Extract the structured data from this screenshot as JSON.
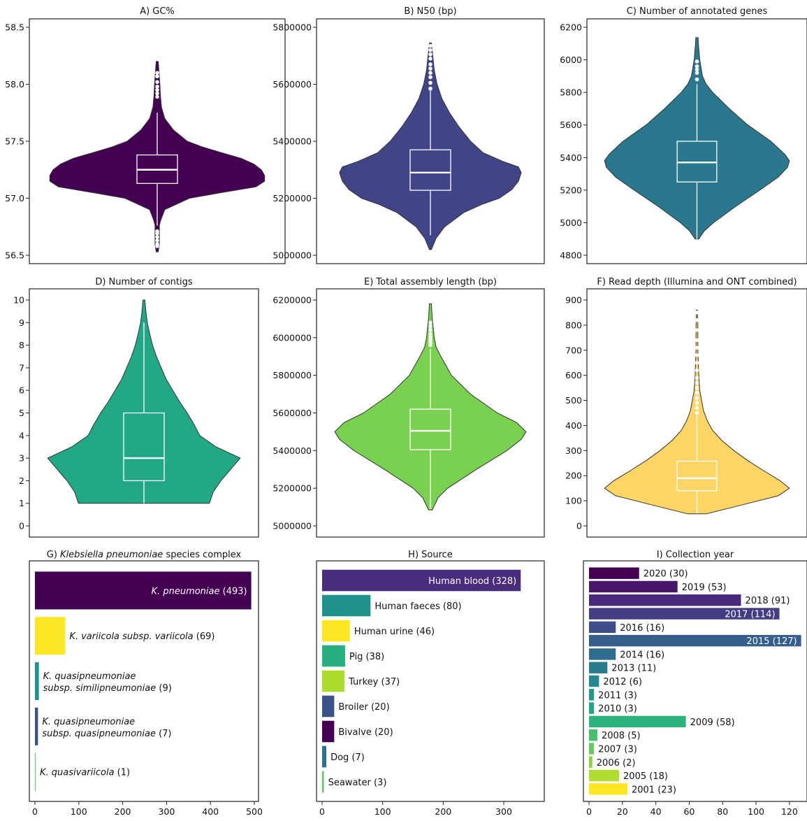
{
  "chart_data": [
    {
      "id": "A",
      "type": "violin",
      "title": "A)  GC%",
      "ylim": [
        56.5,
        58.5
      ],
      "yticks": [
        "56.5",
        "57.0",
        "57.5",
        "58.0",
        "58.5"
      ],
      "ytick_values": [
        56.5,
        57.0,
        57.5,
        58.0,
        58.5
      ],
      "fill": "#440154",
      "box": {
        "q1": 57.13,
        "median": 57.25,
        "q3": 57.38,
        "whisker_low": 56.76,
        "whisker_high": 57.75
      },
      "violin_min": 56.53,
      "violin_max": 58.2,
      "density": [
        [
          56.53,
          0.01
        ],
        [
          56.6,
          0.02
        ],
        [
          56.7,
          0.02
        ],
        [
          56.76,
          0.02
        ],
        [
          56.8,
          0.03
        ],
        [
          56.9,
          0.07
        ],
        [
          57.0,
          0.3
        ],
        [
          57.05,
          0.6
        ],
        [
          57.1,
          0.92
        ],
        [
          57.15,
          1.0
        ],
        [
          57.2,
          1.0
        ],
        [
          57.25,
          0.97
        ],
        [
          57.3,
          0.9
        ],
        [
          57.35,
          0.78
        ],
        [
          57.4,
          0.6
        ],
        [
          57.45,
          0.42
        ],
        [
          57.5,
          0.28
        ],
        [
          57.6,
          0.15
        ],
        [
          57.7,
          0.07
        ],
        [
          57.8,
          0.04
        ],
        [
          57.9,
          0.03
        ],
        [
          58.0,
          0.025
        ],
        [
          58.2,
          0.01
        ]
      ],
      "outliers": [
        56.58,
        56.6,
        56.63,
        56.66,
        56.69,
        56.71,
        57.89,
        57.92,
        57.95,
        57.98,
        58.02,
        58.07,
        58.1
      ]
    },
    {
      "id": "B",
      "type": "violin",
      "title": "B) N50 (bp)",
      "ylim": [
        5000000,
        5800000
      ],
      "yticks": [
        "5000000",
        "5200000",
        "5400000",
        "5600000",
        "5800000"
      ],
      "ytick_values": [
        5000000,
        5200000,
        5400000,
        5600000,
        5800000
      ],
      "fill": "#414487",
      "box": {
        "q1": 5228000,
        "median": 5290000,
        "q3": 5370000,
        "whisker_low": 5070000,
        "whisker_high": 5580000
      },
      "violin_min": 5020000,
      "violin_max": 5745000,
      "density": [
        [
          5020000,
          0.01
        ],
        [
          5060000,
          0.06
        ],
        [
          5100000,
          0.15
        ],
        [
          5150000,
          0.35
        ],
        [
          5180000,
          0.55
        ],
        [
          5200000,
          0.72
        ],
        [
          5230000,
          0.85
        ],
        [
          5260000,
          0.92
        ],
        [
          5290000,
          0.95
        ],
        [
          5310000,
          0.92
        ],
        [
          5330000,
          0.75
        ],
        [
          5360000,
          0.55
        ],
        [
          5400000,
          0.42
        ],
        [
          5450000,
          0.3
        ],
        [
          5500000,
          0.2
        ],
        [
          5550000,
          0.12
        ],
        [
          5600000,
          0.07
        ],
        [
          5650000,
          0.04
        ],
        [
          5700000,
          0.025
        ],
        [
          5745000,
          0.01
        ]
      ],
      "outliers": [
        5585000,
        5605000,
        5625000,
        5640000,
        5655000,
        5670000,
        5690000,
        5705000,
        5720000,
        5735000
      ]
    },
    {
      "id": "C",
      "type": "violin",
      "title": "C) Number of annotated genes",
      "ylim": [
        4800,
        6200
      ],
      "yticks": [
        "4800",
        "5000",
        "5200",
        "5400",
        "5600",
        "5800",
        "6000",
        "6200"
      ],
      "ytick_values": [
        4800,
        5000,
        5200,
        5400,
        5600,
        5800,
        6000,
        6200
      ],
      "fill": "#2a788e",
      "box": {
        "q1": 5250,
        "median": 5370,
        "q3": 5500,
        "whisker_low": 4900,
        "whisker_high": 5850
      },
      "violin_min": 4900,
      "violin_max": 6170,
      "density": [
        [
          4900,
          0.02
        ],
        [
          4950,
          0.08
        ],
        [
          5000,
          0.18
        ],
        [
          5100,
          0.42
        ],
        [
          5200,
          0.68
        ],
        [
          5280,
          0.88
        ],
        [
          5340,
          0.98
        ],
        [
          5380,
          1.0
        ],
        [
          5420,
          0.95
        ],
        [
          5500,
          0.8
        ],
        [
          5600,
          0.55
        ],
        [
          5700,
          0.35
        ],
        [
          5800,
          0.17
        ],
        [
          5850,
          0.1
        ],
        [
          5900,
          0.06
        ],
        [
          6000,
          0.03
        ],
        [
          6100,
          0.015
        ],
        [
          6170,
          0.01
        ]
      ],
      "outliers": [
        5880,
        5920,
        5940,
        5960,
        5990,
        6150,
        6165
      ]
    },
    {
      "id": "D",
      "type": "violin",
      "title": "D) Number of contigs",
      "ylim": [
        0,
        10
      ],
      "yticks": [
        "0",
        "1",
        "2",
        "3",
        "4",
        "5",
        "6",
        "7",
        "8",
        "9",
        "10"
      ],
      "ytick_values": [
        0,
        1,
        2,
        3,
        4,
        5,
        6,
        7,
        8,
        9,
        10
      ],
      "fill": "#22a884",
      "box": {
        "q1": 2,
        "median": 3,
        "q3": 5,
        "whisker_low": 1,
        "whisker_high": 9
      },
      "violin_min": 1,
      "violin_max": 10,
      "density": [
        [
          1,
          0.68
        ],
        [
          1.5,
          0.72
        ],
        [
          2,
          0.8
        ],
        [
          2.5,
          0.9
        ],
        [
          3,
          1.0
        ],
        [
          3.5,
          0.75
        ],
        [
          4,
          0.58
        ],
        [
          4.5,
          0.52
        ],
        [
          5,
          0.45
        ],
        [
          5.5,
          0.37
        ],
        [
          6,
          0.3
        ],
        [
          6.5,
          0.23
        ],
        [
          7,
          0.18
        ],
        [
          7.5,
          0.13
        ],
        [
          8,
          0.09
        ],
        [
          8.5,
          0.06
        ],
        [
          9,
          0.035
        ],
        [
          9.5,
          0.02
        ],
        [
          10,
          0.01
        ]
      ],
      "outliers": []
    },
    {
      "id": "E",
      "type": "violin",
      "title": "E) Total assembly length (bp)",
      "ylim": [
        5000000,
        6200000
      ],
      "yticks": [
        "5000000",
        "5200000",
        "5400000",
        "5600000",
        "5800000",
        "6000000",
        "6200000"
      ],
      "ytick_values": [
        5000000,
        5200000,
        5400000,
        5600000,
        5800000,
        6000000,
        6200000
      ],
      "fill": "#7ad151",
      "box": {
        "q1": 5405000,
        "median": 5505000,
        "q3": 5620000,
        "whisker_low": 5090000,
        "whisker_high": 5940000
      },
      "violin_min": 5085000,
      "violin_max": 6180000,
      "density": [
        [
          5085000,
          0.02
        ],
        [
          5150000,
          0.08
        ],
        [
          5200000,
          0.18
        ],
        [
          5300000,
          0.48
        ],
        [
          5400000,
          0.8
        ],
        [
          5460000,
          0.95
        ],
        [
          5500000,
          1.0
        ],
        [
          5550000,
          0.9
        ],
        [
          5600000,
          0.7
        ],
        [
          5700000,
          0.42
        ],
        [
          5800000,
          0.22
        ],
        [
          5900000,
          0.11
        ],
        [
          5950000,
          0.06
        ],
        [
          6000000,
          0.04
        ],
        [
          6100000,
          0.02
        ],
        [
          6180000,
          0.01
        ]
      ],
      "outliers": [
        5960000,
        5975000,
        5990000,
        6005000,
        6020000,
        6040000,
        6060000,
        6080000
      ]
    },
    {
      "id": "F",
      "type": "violin",
      "title": "F) Read depth (Illumina and ONT combined)",
      "ylim": [
        0,
        900
      ],
      "yticks": [
        "0",
        "100",
        "200",
        "300",
        "400",
        "500",
        "600",
        "700",
        "800",
        "900"
      ],
      "ytick_values": [
        0,
        100,
        200,
        300,
        400,
        500,
        600,
        700,
        800,
        900
      ],
      "fill": "#fdd466",
      "box": {
        "q1": 140,
        "median": 190,
        "q3": 258,
        "whisker_low": 50,
        "whisker_high": 440
      },
      "violin_min": 48,
      "violin_max": 860,
      "density": [
        [
          48,
          0.1
        ],
        [
          80,
          0.45
        ],
        [
          120,
          0.88
        ],
        [
          150,
          1.0
        ],
        [
          180,
          0.9
        ],
        [
          220,
          0.72
        ],
        [
          260,
          0.55
        ],
        [
          300,
          0.4
        ],
        [
          340,
          0.27
        ],
        [
          380,
          0.17
        ],
        [
          420,
          0.11
        ],
        [
          460,
          0.07
        ],
        [
          500,
          0.05
        ],
        [
          540,
          0.03
        ],
        [
          600,
          0.02
        ],
        [
          700,
          0.01
        ],
        [
          800,
          0.01
        ],
        [
          860,
          0.005
        ]
      ],
      "outliers": [
        450,
        470,
        490,
        510,
        530,
        550,
        570,
        590,
        620,
        650,
        680,
        710,
        740,
        780,
        820,
        850
      ]
    },
    {
      "id": "G",
      "type": "bar",
      "orientation": "horizontal",
      "title_italic": "Klebsiella pneumoniae",
      "title_rest": " species complex",
      "title_prefix": "G) ",
      "xlim": [
        0,
        500
      ],
      "xticks": [
        "0",
        "100",
        "200",
        "300",
        "400",
        "500"
      ],
      "xtick_values": [
        0,
        100,
        200,
        300,
        400,
        500
      ],
      "bars": [
        {
          "label_italic": "K. pneumoniae",
          "label_rest": " (493)",
          "value": 493,
          "color": "#440154",
          "inside": true
        },
        {
          "label_italic": "K. variicola subsp. variicola",
          "label_rest": " (69)",
          "value": 69,
          "color": "#fde725",
          "inside": false
        },
        {
          "label_italic": "K. quasipneumoniae",
          "label_line2_italic": "subsp. similipneumoniae",
          "label_rest": " (9)",
          "value": 9,
          "color": "#21918c",
          "inside": false
        },
        {
          "label_italic": "K. quasipneumoniae",
          "label_line2_italic": "subsp. quasipneumoniae",
          "label_rest": " (7)",
          "value": 7,
          "color": "#3b528b",
          "inside": false
        },
        {
          "label_italic": "K. quasivariicola",
          "label_rest": " (1)",
          "value": 1,
          "color": "#5ec962",
          "inside": false
        }
      ]
    },
    {
      "id": "H",
      "type": "bar",
      "orientation": "horizontal",
      "title": "H) Source",
      "xlim": [
        0,
        360
      ],
      "xticks": [
        "0",
        "100",
        "200",
        "300"
      ],
      "xtick_values": [
        0,
        100,
        200,
        300
      ],
      "bars": [
        {
          "label": "Human blood (328)",
          "value": 328,
          "color": "#472d7b",
          "inside": true
        },
        {
          "label": "Human faeces (80)",
          "value": 80,
          "color": "#21918c",
          "inside": false
        },
        {
          "label": "Human urine (46)",
          "value": 46,
          "color": "#fde725",
          "inside": false
        },
        {
          "label": "Pig (38)",
          "value": 38,
          "color": "#28ae80",
          "inside": false
        },
        {
          "label": "Turkey (37)",
          "value": 37,
          "color": "#addc30",
          "inside": false
        },
        {
          "label": "Broiler (20)",
          "value": 20,
          "color": "#3b528b",
          "inside": false
        },
        {
          "label": "Bivalve (20)",
          "value": 20,
          "color": "#440154",
          "inside": false
        },
        {
          "label": "Dog (7)",
          "value": 7,
          "color": "#2c728e",
          "inside": false
        },
        {
          "label": "Seawater (3)",
          "value": 3,
          "color": "#5ec962",
          "inside": false
        }
      ]
    },
    {
      "id": "I",
      "type": "bar",
      "orientation": "horizontal",
      "title": "I) Collection year",
      "xlim": [
        0,
        128
      ],
      "xticks": [
        "0",
        "20",
        "40",
        "60",
        "80",
        "100",
        "120"
      ],
      "xtick_values": [
        0,
        20,
        40,
        60,
        80,
        100,
        120
      ],
      "bars": [
        {
          "label": "2020 (30)",
          "value": 30,
          "color": "#440154",
          "inside": false
        },
        {
          "label": "2019 (53)",
          "value": 53,
          "color": "#481769",
          "inside": false
        },
        {
          "label": "2018 (91)",
          "value": 91,
          "color": "#472a7a",
          "inside": false
        },
        {
          "label": "2017 (114)",
          "value": 114,
          "color": "#433d84",
          "inside": true
        },
        {
          "label": "2016 (16)",
          "value": 16,
          "color": "#3d4e8a",
          "inside": false
        },
        {
          "label": "2015 (127)",
          "value": 127,
          "color": "#355e8d",
          "inside": true
        },
        {
          "label": "2014 (16)",
          "value": 16,
          "color": "#2e6d8e",
          "inside": false
        },
        {
          "label": "2013 (11)",
          "value": 11,
          "color": "#297b8e",
          "inside": false
        },
        {
          "label": "2012 (6)",
          "value": 6,
          "color": "#23898e",
          "inside": false
        },
        {
          "label": "2011 (3)",
          "value": 3,
          "color": "#1f978b",
          "inside": false
        },
        {
          "label": "2010 (3)",
          "value": 3,
          "color": "#21a585",
          "inside": false
        },
        {
          "label": "2009 (58)",
          "value": 58,
          "color": "#2eb37c",
          "inside": false
        },
        {
          "label": "2008 (5)",
          "value": 5,
          "color": "#46c06f",
          "inside": false
        },
        {
          "label": "2007 (3)",
          "value": 3,
          "color": "#65cb5e",
          "inside": false
        },
        {
          "label": "2006 (2)",
          "value": 2,
          "color": "#89d548",
          "inside": false
        },
        {
          "label": "2005 (18)",
          "value": 18,
          "color": "#b0dd2f",
          "inside": false
        },
        {
          "label": "2001 (23)",
          "value": 23,
          "color": "#fde725",
          "inside": false
        }
      ]
    }
  ]
}
